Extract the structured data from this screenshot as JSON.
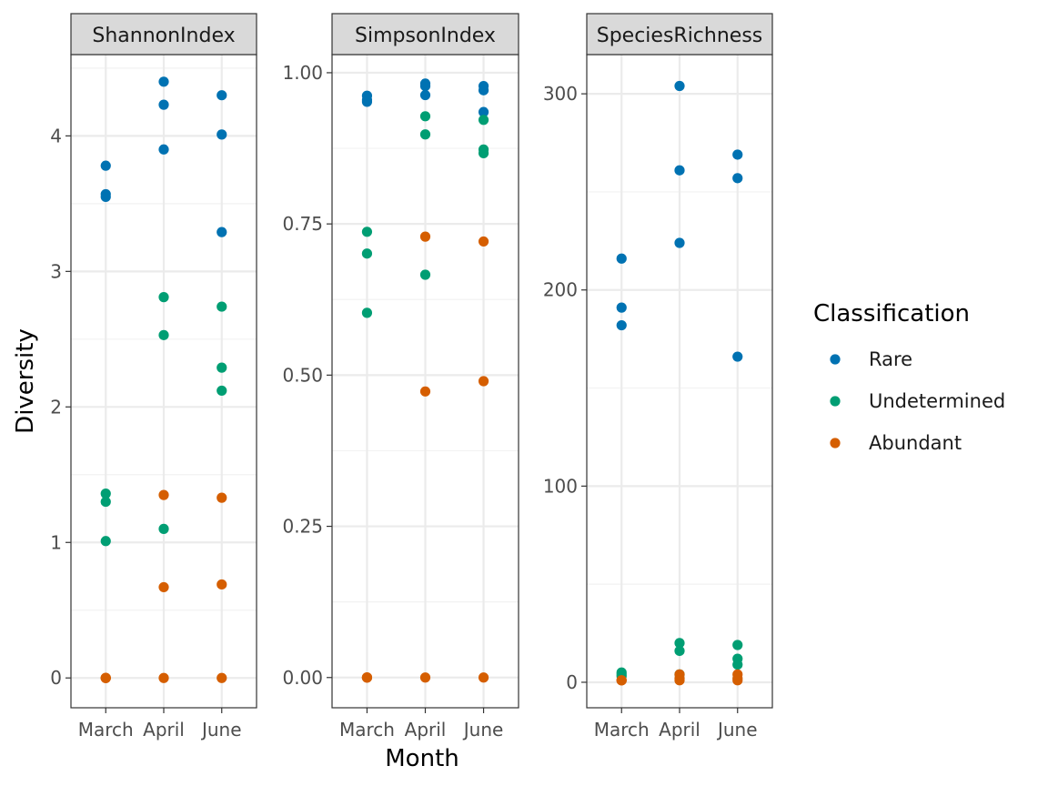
{
  "colors": {
    "Rare": "#0072B2",
    "Undetermined": "#009E73",
    "Abundant": "#D55E00",
    "panel_border": "#333333",
    "strip_fill": "#D9D9D9",
    "grid_major": "#EBEBEB",
    "grid_minor": "#F2F2F2"
  },
  "chart_data": {
    "type": "scatter",
    "xlabel": "Month",
    "ylabel": "Diversity",
    "categories": [
      "March",
      "April",
      "June"
    ],
    "legend": {
      "title": "Classification",
      "placement": "right",
      "entries": [
        "Rare",
        "Undetermined",
        "Abundant"
      ]
    },
    "grid": true,
    "facets": [
      {
        "strip": "ShannonIndex",
        "ylim": [
          -0.22,
          4.6
        ],
        "yticks": [
          0,
          1,
          2,
          3,
          4
        ],
        "yticklabels": [
          "0",
          "1",
          "2",
          "3",
          "4"
        ],
        "series": [
          {
            "name": "Rare",
            "points": [
              [
                "March",
                3.78
              ],
              [
                "March",
                3.57
              ],
              [
                "March",
                3.55
              ],
              [
                "April",
                4.4
              ],
              [
                "April",
                4.23
              ],
              [
                "April",
                3.9
              ],
              [
                "June",
                4.3
              ],
              [
                "June",
                4.01
              ],
              [
                "June",
                3.29
              ]
            ]
          },
          {
            "name": "Undetermined",
            "points": [
              [
                "March",
                1.36
              ],
              [
                "March",
                1.3
              ],
              [
                "March",
                1.01
              ],
              [
                "April",
                2.81
              ],
              [
                "April",
                2.53
              ],
              [
                "April",
                1.1
              ],
              [
                "June",
                2.74
              ],
              [
                "June",
                2.29
              ],
              [
                "June",
                2.12
              ]
            ]
          },
          {
            "name": "Abundant",
            "points": [
              [
                "March",
                0.0
              ],
              [
                "March",
                0.0
              ],
              [
                "March",
                0.0
              ],
              [
                "April",
                1.35
              ],
              [
                "April",
                0.67
              ],
              [
                "April",
                0.0
              ],
              [
                "June",
                1.33
              ],
              [
                "June",
                0.69
              ],
              [
                "June",
                0.0
              ]
            ]
          }
        ]
      },
      {
        "strip": "SimpsonIndex",
        "ylim": [
          -0.05,
          1.03
        ],
        "yticks": [
          0,
          0.25,
          0.5,
          0.75,
          1.0
        ],
        "yticklabels": [
          "0.00",
          "0.25",
          "0.50",
          "0.75",
          "1.00"
        ],
        "series": [
          {
            "name": "Rare",
            "points": [
              [
                "March",
                0.962
              ],
              [
                "March",
                0.955
              ],
              [
                "March",
                0.952
              ],
              [
                "April",
                0.982
              ],
              [
                "April",
                0.978
              ],
              [
                "April",
                0.963
              ],
              [
                "June",
                0.978
              ],
              [
                "June",
                0.971
              ],
              [
                "June",
                0.935
              ]
            ]
          },
          {
            "name": "Undetermined",
            "points": [
              [
                "March",
                0.737
              ],
              [
                "March",
                0.701
              ],
              [
                "March",
                0.603
              ],
              [
                "April",
                0.928
              ],
              [
                "April",
                0.898
              ],
              [
                "April",
                0.666
              ],
              [
                "June",
                0.922
              ],
              [
                "June",
                0.873
              ],
              [
                "June",
                0.867
              ]
            ]
          },
          {
            "name": "Abundant",
            "points": [
              [
                "March",
                0.0
              ],
              [
                "March",
                0.0
              ],
              [
                "March",
                0.0
              ],
              [
                "April",
                0.729
              ],
              [
                "April",
                0.473
              ],
              [
                "April",
                0.0
              ],
              [
                "June",
                0.721
              ],
              [
                "June",
                0.49
              ],
              [
                "June",
                0.0
              ]
            ]
          }
        ]
      },
      {
        "strip": "SpeciesRichness",
        "ylim": [
          -13,
          320
        ],
        "yticks": [
          0,
          100,
          200,
          300
        ],
        "yticklabels": [
          "0",
          "100",
          "200",
          "300"
        ],
        "series": [
          {
            "name": "Rare",
            "points": [
              [
                "March",
                216
              ],
              [
                "March",
                191
              ],
              [
                "March",
                182
              ],
              [
                "April",
                304
              ],
              [
                "April",
                261
              ],
              [
                "April",
                224
              ],
              [
                "June",
                269
              ],
              [
                "June",
                257
              ],
              [
                "June",
                166
              ]
            ]
          },
          {
            "name": "Undetermined",
            "points": [
              [
                "March",
                5
              ],
              [
                "March",
                4
              ],
              [
                "March",
                3
              ],
              [
                "April",
                20
              ],
              [
                "April",
                16
              ],
              [
                "April",
                4
              ],
              [
                "June",
                19
              ],
              [
                "June",
                12
              ],
              [
                "June",
                9
              ]
            ]
          },
          {
            "name": "Abundant",
            "points": [
              [
                "March",
                1
              ],
              [
                "March",
                1
              ],
              [
                "March",
                1
              ],
              [
                "April",
                4
              ],
              [
                "April",
                2
              ],
              [
                "April",
                1
              ],
              [
                "June",
                4
              ],
              [
                "June",
                2
              ],
              [
                "June",
                1
              ]
            ]
          }
        ]
      }
    ]
  }
}
